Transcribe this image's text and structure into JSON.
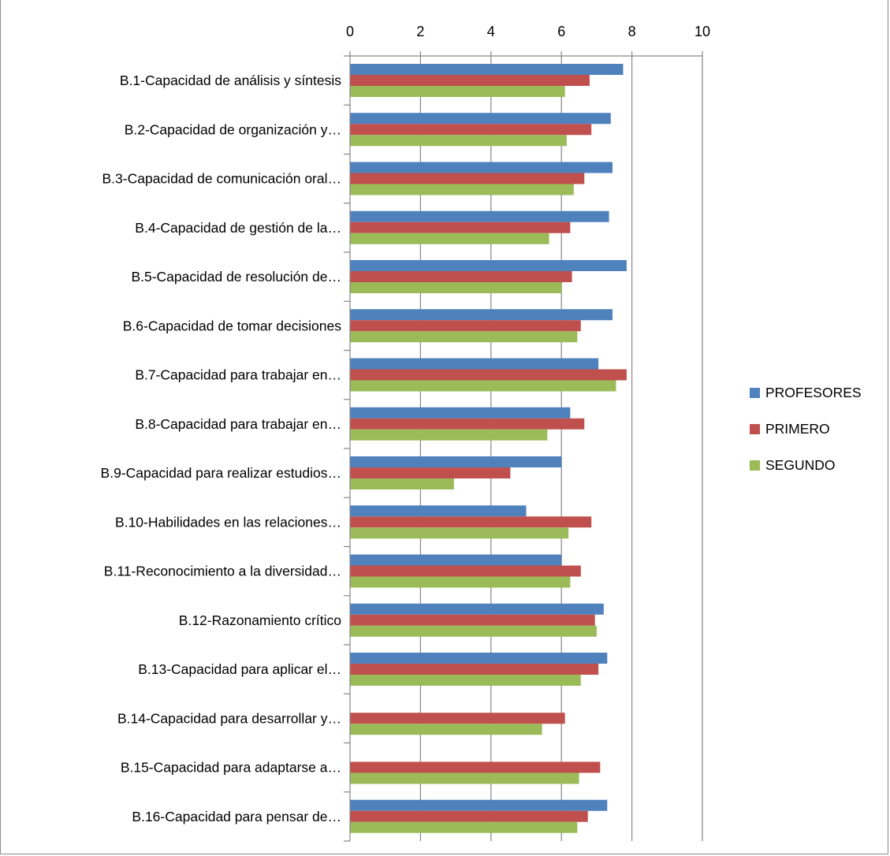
{
  "chart_data": {
    "type": "bar",
    "orientation": "horizontal",
    "categories": [
      "B.1-Capacidad de análisis y síntesis",
      "B.2-Capacidad de organización y…",
      "B.3-Capacidad de comunicación oral…",
      "B.4-Capacidad de gestión de la…",
      "B.5-Capacidad de resolución de…",
      "B.6-Capacidad de tomar decisiones",
      "B.7-Capacidad para trabajar en…",
      "B.8-Capacidad para trabajar en…",
      "B.9-Capacidad para realizar estudios…",
      "B.10-Habilidades en las relaciones…",
      "B.11-Reconocimiento a la diversidad…",
      "B.12-Razonamiento crítico",
      "B.13-Capacidad para aplicar el…",
      "B.14-Capacidad para desarrollar y…",
      "B.15-Capacidad para adaptarse a…",
      "B.16-Capacidad para pensar de…"
    ],
    "series": [
      {
        "name": "PROFESORES",
        "color": "#4f81bd",
        "values": [
          7.75,
          7.4,
          7.45,
          7.35,
          7.85,
          7.45,
          7.05,
          6.25,
          6.0,
          5.0,
          6.0,
          7.2,
          7.3,
          0,
          0,
          7.3
        ]
      },
      {
        "name": "PRIMERO",
        "color": "#c0504d",
        "values": [
          6.8,
          6.85,
          6.65,
          6.25,
          6.3,
          6.55,
          7.85,
          6.65,
          4.55,
          6.85,
          6.55,
          6.95,
          7.05,
          6.1,
          7.1,
          6.75
        ]
      },
      {
        "name": "SEGUNDO",
        "color": "#9bbb59",
        "values": [
          6.1,
          6.15,
          6.35,
          5.65,
          6.0,
          6.45,
          7.55,
          5.6,
          2.95,
          6.2,
          6.25,
          7.0,
          6.55,
          5.45,
          6.5,
          6.45
        ]
      }
    ],
    "xlim": [
      0,
      10
    ],
    "xticks": [
      "0",
      "2",
      "4",
      "6",
      "8",
      "10"
    ],
    "x_axis_position": "top",
    "grid": true,
    "legend_position": "right",
    "title": "",
    "xlabel": "",
    "ylabel": ""
  }
}
